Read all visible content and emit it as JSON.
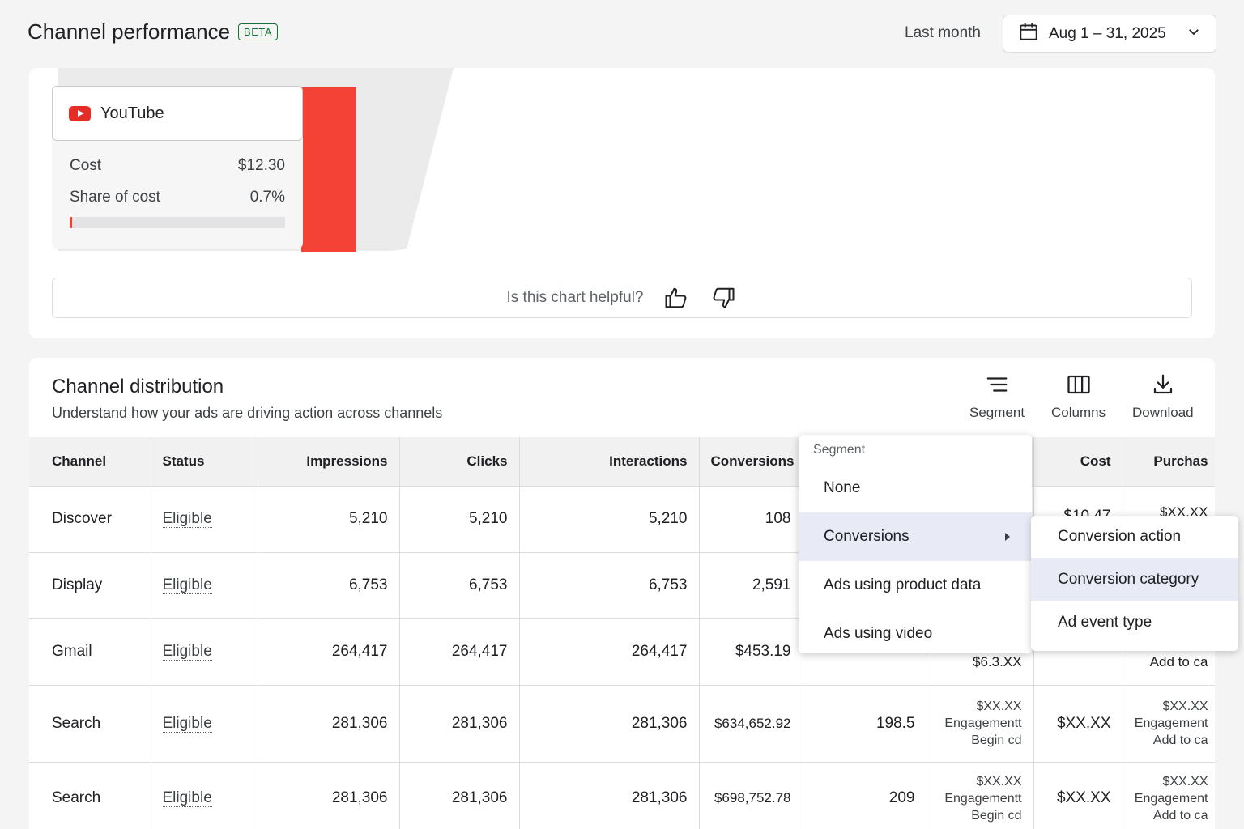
{
  "header": {
    "title": "Channel performance",
    "badge": "BETA",
    "range_label": "Last month",
    "date_range": "Aug 1 – 31, 2025",
    "icons": {
      "calendar": "calendar-icon",
      "dropdown": "chevron-down-icon"
    }
  },
  "chart": {
    "tooltip": {
      "channel": "YouTube",
      "cost_label": "Cost",
      "cost_value": "$12.30",
      "share_label": "Share of cost",
      "share_value": "0.7%",
      "share_fraction": 0.007
    },
    "bar_color": "#f44336",
    "helpful_prompt": "Is this chart helpful?"
  },
  "distribution": {
    "title": "Channel distribution",
    "subtitle": "Understand how your ads are driving action across channels",
    "toolbar": {
      "segment": "Segment",
      "columns": "Columns",
      "download": "Download"
    },
    "columns": [
      "Channel",
      "Status",
      "Impressions",
      "Clicks",
      "Interactions",
      "Conversions",
      "",
      "",
      "Cost",
      "Purchas"
    ],
    "rows": [
      {
        "channel": "Discover",
        "status": "Eligible",
        "impressions": "5,210",
        "clicks": "5,210",
        "interactions": "5,210",
        "conversions": "108",
        "cost": "$10.47",
        "purchase": "$XX.XX"
      },
      {
        "channel": "Display",
        "status": "Eligible",
        "impressions": "6,753",
        "clicks": "6,753",
        "interactions": "6,753",
        "conversions": "2,591"
      },
      {
        "channel": "Gmail",
        "status": "Eligible",
        "impressions": "264,417",
        "clicks": "264,417",
        "interactions": "264,417",
        "conversions": "$453.19",
        "col8": "$6.3.XX",
        "purchase_line": "Add to ca"
      },
      {
        "channel": "Search",
        "status": "Eligible",
        "impressions": "281,306",
        "clicks": "281,306",
        "interactions": "281,306",
        "conversions": "$634,652.92",
        "col7": "198.5",
        "col8_1": "$XX.XX",
        "col8_2": "Engagementt",
        "col8_3": "Begin cd",
        "cost": "$XX.XX",
        "purchase_1": "$XX.XX",
        "purchase_2": "Engagement",
        "purchase_3": "Add to ca"
      },
      {
        "channel": "Search",
        "status": "Eligible",
        "impressions": "281,306",
        "clicks": "281,306",
        "interactions": "281,306",
        "conversions": "$698,752.78",
        "col7": "209",
        "col8_1": "$XX.XX",
        "col8_2": "Engagementt",
        "col8_3": "Begin cd",
        "cost": "$XX.XX",
        "purchase_1": "$XX.XX",
        "purchase_2": "Engagement",
        "purchase_3": "Add to ca"
      }
    ]
  },
  "segment_menu": {
    "header": "Segment",
    "items": [
      "None",
      "Conversions",
      "Ads using product data",
      "Ads using video"
    ],
    "active": "Conversions",
    "submenu": [
      "Conversion action",
      "Conversion category",
      "Ad event type"
    ],
    "submenu_active": "Conversion category"
  }
}
